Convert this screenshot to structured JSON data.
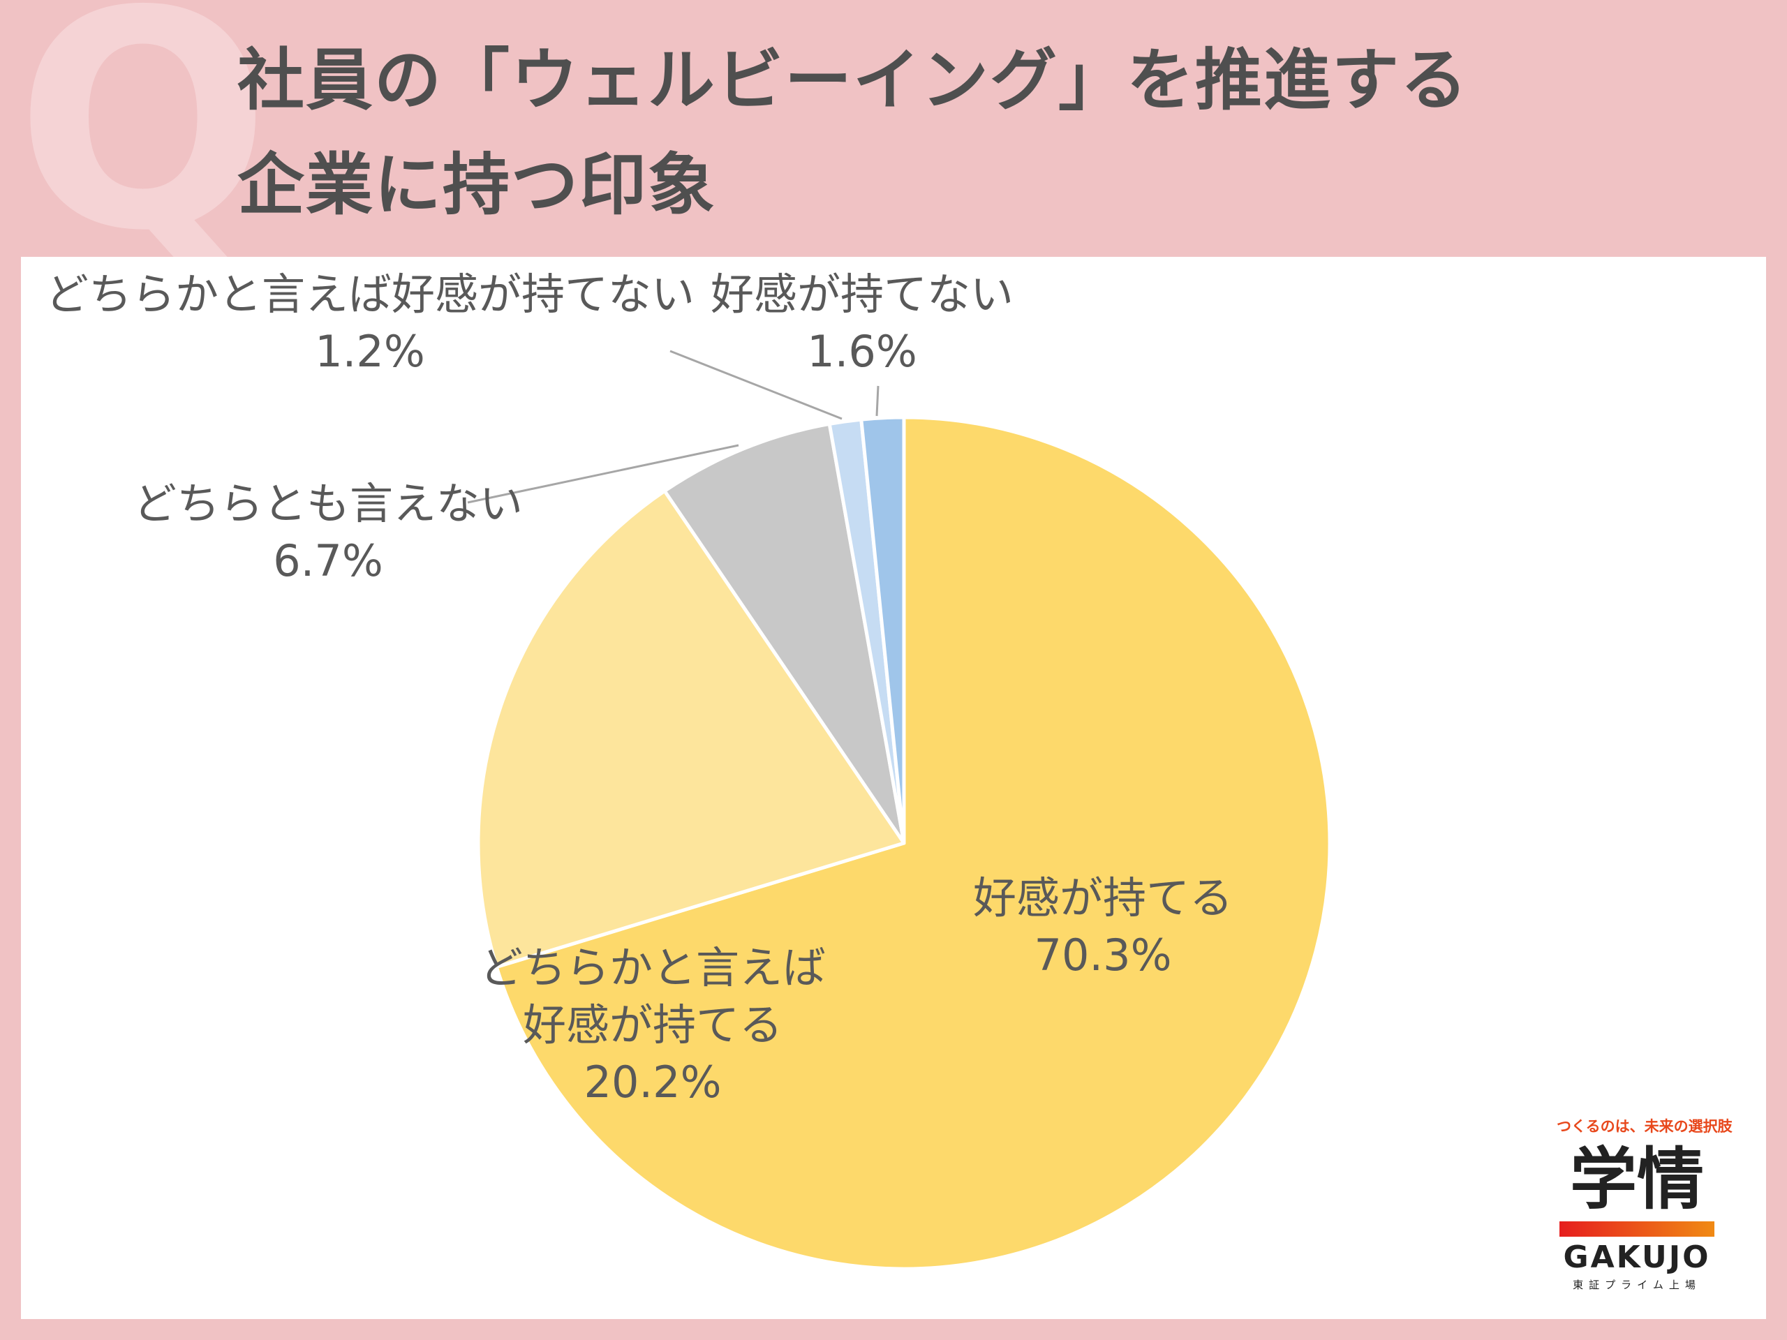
{
  "header": {
    "q_mark": "Q",
    "title_line1": "社員の「ウェルビーイング」を推進する",
    "title_line2": "企業に持つ印象"
  },
  "chart_data": {
    "type": "pie",
    "start_angle_deg": 0,
    "direction": "clockwise",
    "slices": [
      {
        "label_lines": [
          "好感が持てる"
        ],
        "value": 70.3,
        "display": "70.3%",
        "color": "#fdd96b"
      },
      {
        "label_lines": [
          "どちらかと言えば",
          "好感が持てる"
        ],
        "value": 20.2,
        "display": "20.2%",
        "color": "#fde59c"
      },
      {
        "label_lines": [
          "どちらとも言えない"
        ],
        "value": 6.7,
        "display": "6.7%",
        "color": "#c8c8c8"
      },
      {
        "label_lines": [
          "どちらかと言えば好感が持てない"
        ],
        "value": 1.2,
        "display": "1.2%",
        "color": "#c6dcf3"
      },
      {
        "label_lines": [
          "好感が持てない"
        ],
        "value": 1.6,
        "display": "1.6%",
        "color": "#9fc5ea"
      }
    ]
  },
  "logo": {
    "tagline": "つくるのは、未来の選択肢",
    "kanji": "学情",
    "name": "GAKUJO",
    "sub": "東証プライム上場",
    "bar_color_start": "#e61e1e",
    "bar_color_end": "#f08a14"
  }
}
